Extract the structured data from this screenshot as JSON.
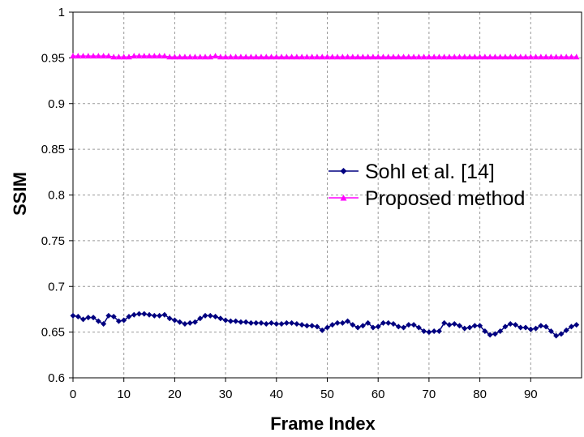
{
  "chart_data": {
    "type": "line",
    "title": "",
    "xlabel": "Frame Index",
    "ylabel": "SSIM",
    "xlim": [
      0,
      99
    ],
    "ylim": [
      0.6,
      1.0
    ],
    "x_ticks": [
      0,
      10,
      20,
      30,
      40,
      50,
      60,
      70,
      80,
      90
    ],
    "y_ticks": [
      "0.6",
      "0.65",
      "0.7",
      "0.75",
      "0.8",
      "0.85",
      "0.9",
      "0.95",
      "1"
    ],
    "grid": true,
    "grid_style": "dashed",
    "legend_position": "center-right",
    "x": [
      0,
      1,
      2,
      3,
      4,
      5,
      6,
      7,
      8,
      9,
      10,
      11,
      12,
      13,
      14,
      15,
      16,
      17,
      18,
      19,
      20,
      21,
      22,
      23,
      24,
      25,
      26,
      27,
      28,
      29,
      30,
      31,
      32,
      33,
      34,
      35,
      36,
      37,
      38,
      39,
      40,
      41,
      42,
      43,
      44,
      45,
      46,
      47,
      48,
      49,
      50,
      51,
      52,
      53,
      54,
      55,
      56,
      57,
      58,
      59,
      60,
      61,
      62,
      63,
      64,
      65,
      66,
      67,
      68,
      69,
      70,
      71,
      72,
      73,
      74,
      75,
      76,
      77,
      78,
      79,
      80,
      81,
      82,
      83,
      84,
      85,
      86,
      87,
      88,
      89,
      90,
      91,
      92,
      93,
      94,
      95,
      96,
      97,
      98,
      99
    ],
    "series": [
      {
        "name": "Sohl et al. [14]",
        "color": "#000080",
        "marker": "diamond",
        "values": [
          0.668,
          0.667,
          0.664,
          0.666,
          0.666,
          0.662,
          0.659,
          0.668,
          0.667,
          0.662,
          0.663,
          0.667,
          0.669,
          0.67,
          0.67,
          0.669,
          0.668,
          0.668,
          0.669,
          0.665,
          0.663,
          0.661,
          0.659,
          0.66,
          0.661,
          0.665,
          0.668,
          0.668,
          0.667,
          0.665,
          0.663,
          0.662,
          0.662,
          0.661,
          0.661,
          0.66,
          0.66,
          0.66,
          0.659,
          0.66,
          0.659,
          0.659,
          0.66,
          0.66,
          0.659,
          0.658,
          0.657,
          0.657,
          0.656,
          0.652,
          0.655,
          0.658,
          0.66,
          0.66,
          0.662,
          0.658,
          0.655,
          0.657,
          0.66,
          0.655,
          0.656,
          0.66,
          0.66,
          0.659,
          0.656,
          0.655,
          0.658,
          0.658,
          0.655,
          0.651,
          0.65,
          0.651,
          0.651,
          0.66,
          0.658,
          0.659,
          0.657,
          0.654,
          0.655,
          0.657,
          0.657,
          0.651,
          0.647,
          0.648,
          0.651,
          0.656,
          0.659,
          0.658,
          0.655,
          0.655,
          0.653,
          0.654,
          0.657,
          0.656,
          0.651,
          0.646,
          0.648,
          0.652,
          0.656,
          0.658
        ]
      },
      {
        "name": "Proposed method",
        "color": "#ff00ff",
        "marker": "triangle",
        "values": [
          0.952,
          0.952,
          0.952,
          0.952,
          0.952,
          0.952,
          0.952,
          0.952,
          0.951,
          0.951,
          0.951,
          0.951,
          0.952,
          0.952,
          0.952,
          0.952,
          0.952,
          0.952,
          0.952,
          0.951,
          0.951,
          0.951,
          0.951,
          0.951,
          0.951,
          0.951,
          0.951,
          0.951,
          0.952,
          0.951,
          0.951,
          0.951,
          0.951,
          0.951,
          0.951,
          0.951,
          0.951,
          0.951,
          0.951,
          0.951,
          0.951,
          0.951,
          0.951,
          0.951,
          0.951,
          0.951,
          0.951,
          0.951,
          0.951,
          0.951,
          0.951,
          0.951,
          0.951,
          0.951,
          0.951,
          0.951,
          0.951,
          0.951,
          0.951,
          0.951,
          0.951,
          0.951,
          0.951,
          0.951,
          0.951,
          0.951,
          0.951,
          0.951,
          0.951,
          0.951,
          0.951,
          0.951,
          0.951,
          0.951,
          0.951,
          0.951,
          0.951,
          0.951,
          0.951,
          0.951,
          0.951,
          0.951,
          0.951,
          0.951,
          0.951,
          0.951,
          0.951,
          0.951,
          0.951,
          0.951,
          0.951,
          0.951,
          0.951,
          0.951,
          0.951,
          0.951,
          0.951,
          0.951,
          0.951,
          0.951
        ]
      }
    ]
  }
}
